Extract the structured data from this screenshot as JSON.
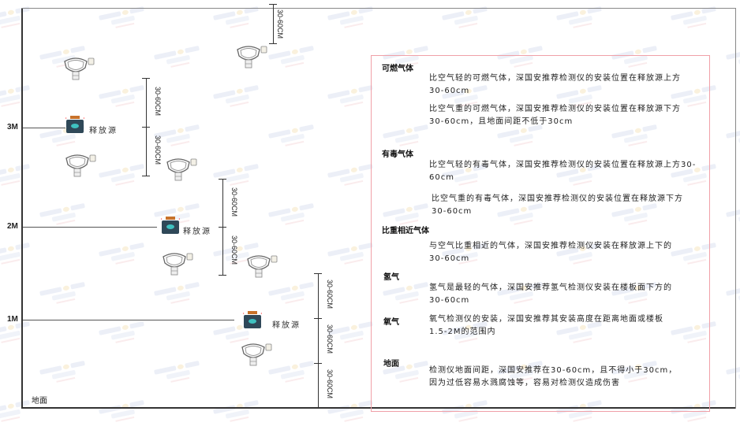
{
  "watermark": "SINGOAN 深国安",
  "levels": {
    "m3": "3M",
    "m2": "2M",
    "m1": "1M",
    "floor": "地面"
  },
  "source_label": "释放源",
  "dimension_label": "30-60CM",
  "info": {
    "flammable": {
      "title": "可燃气体",
      "p1": "比空气轻的可燃气体，深国安推荐检测仪的安装位置在释放源上方30-60cm",
      "p2": "比空气重的可燃气体，深国安推荐检测仪的安装位置在释放源下方30-60cm，且地面间距不低于30cm"
    },
    "toxic": {
      "title": "有毒气体",
      "p1": "比空气轻的有毒气体，深国安推荐检测仪的安装位置在释放源上方30-60cm",
      "p2": "比空气重的有毒气体，深国安推荐检测仪的安装位置在释放源下方30-60cm"
    },
    "similar": {
      "title": "比重相近气体",
      "p1": "与空气比重相近的气体，深国安推荐检测仪安装在释放源上下的30-60cm"
    },
    "hydrogen": {
      "title": "氢气",
      "p1": "氢气是最轻的气体，深国安推荐氢气检测仪安装在楼板面下方的30-60cm"
    },
    "oxygen": {
      "title": "氧气",
      "p1": "氧气检测仪的安装，深国安推荐其安装高度在距离地面或楼板1.5-2M的范围内"
    },
    "ground": {
      "title": "地面",
      "p1": "检测仪地面间距，深国安推荐在30-60cm，且不得小于30cm，因为过低容易水溅腐蚀等，容易对检测仪造成伤害"
    }
  },
  "colors": {
    "frame": "#333333",
    "box_border": "#f0a0a8",
    "source_body": "#2f4858",
    "source_cap": "#c8722a",
    "source_face": "#3fc1c0"
  }
}
